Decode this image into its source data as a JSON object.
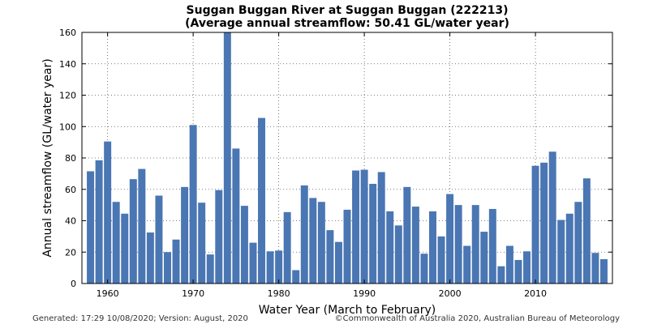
{
  "chart_data": {
    "type": "bar",
    "title": "Suggan Buggan River at Suggan Buggan (222213)",
    "subtitle": "(Average annual streamflow: 50.41 GL/water year)",
    "xlabel": "Water Year (March to February)",
    "ylabel": "Annual streamflow (GL/water year)",
    "xlim": [
      1957,
      2019
    ],
    "ylim": [
      0,
      160
    ],
    "x_ticks": [
      1960,
      1970,
      1980,
      1990,
      2000,
      2010
    ],
    "y_ticks": [
      0,
      20,
      40,
      60,
      80,
      100,
      120,
      140,
      160
    ],
    "grid": true,
    "bar_color": "#4a76b3",
    "years": [
      1958,
      1959,
      1960,
      1961,
      1962,
      1963,
      1964,
      1965,
      1966,
      1967,
      1968,
      1969,
      1970,
      1971,
      1972,
      1973,
      1974,
      1975,
      1976,
      1977,
      1978,
      1979,
      1980,
      1981,
      1982,
      1983,
      1984,
      1985,
      1986,
      1987,
      1988,
      1989,
      1990,
      1991,
      1992,
      1993,
      1994,
      1995,
      1996,
      1997,
      1998,
      1999,
      2000,
      2001,
      2002,
      2003,
      2004,
      2005,
      2006,
      2007,
      2008,
      2009,
      2010,
      2011,
      2012,
      2013,
      2014,
      2015,
      2016,
      2017,
      2018
    ],
    "values": [
      71.5,
      78.5,
      90.5,
      52,
      44.5,
      66.5,
      73,
      32.5,
      56,
      20,
      28,
      61.5,
      101,
      51.5,
      18.5,
      59.5,
      160,
      86,
      49.5,
      26,
      105.5,
      20.5,
      21,
      45.5,
      8.5,
      62.5,
      54.5,
      52,
      34,
      26.5,
      47,
      72,
      72.5,
      63.5,
      71,
      46,
      37,
      61.5,
      49,
      19,
      46,
      30,
      57,
      50,
      24,
      50,
      33,
      47.5,
      11,
      24,
      15,
      20.5,
      75,
      77,
      84,
      40.5,
      44.5,
      52,
      67,
      19.5,
      15.5
    ]
  },
  "footer": {
    "generated": "Generated: 17:29 10/08/2020; Version: August, 2020",
    "copyright": "©Commonwealth of Australia 2020, Australian Bureau of Meteorology"
  }
}
